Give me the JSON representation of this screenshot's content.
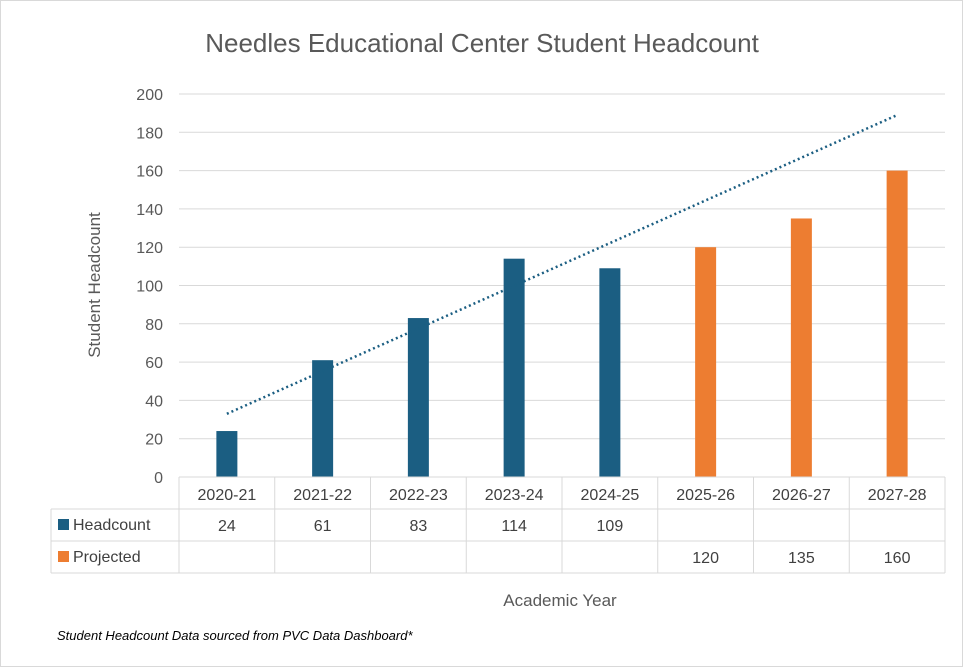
{
  "chart_data": {
    "type": "bar",
    "title": "Needles Educational Center Student Headcount",
    "xlabel": "Academic Year",
    "ylabel": "Student Headcount",
    "ylim": [
      0,
      200
    ],
    "yticks": [
      0,
      20,
      40,
      60,
      80,
      100,
      120,
      140,
      160,
      180,
      200
    ],
    "grid": true,
    "legend": "data-table",
    "categories": [
      "2020-21",
      "2021-22",
      "2022-23",
      "2023-24",
      "2024-25",
      "2025-26",
      "2026-27",
      "2027-28"
    ],
    "series": [
      {
        "name": "Headcount",
        "color": "#1b5e82",
        "values": [
          24,
          61,
          83,
          114,
          109,
          null,
          null,
          null
        ]
      },
      {
        "name": "Projected",
        "color": "#ed7d31",
        "values": [
          null,
          null,
          null,
          null,
          null,
          120,
          135,
          160
        ]
      }
    ],
    "trendline": {
      "type": "linear",
      "style": "dotted",
      "color": "#1b5e82",
      "start": {
        "x": "2020-21",
        "y": 33
      },
      "end": {
        "x": "2027-28",
        "y": 189
      }
    },
    "data_table": true
  },
  "footnote": "Student Headcount Data sourced from PVC Data Dashboard*"
}
